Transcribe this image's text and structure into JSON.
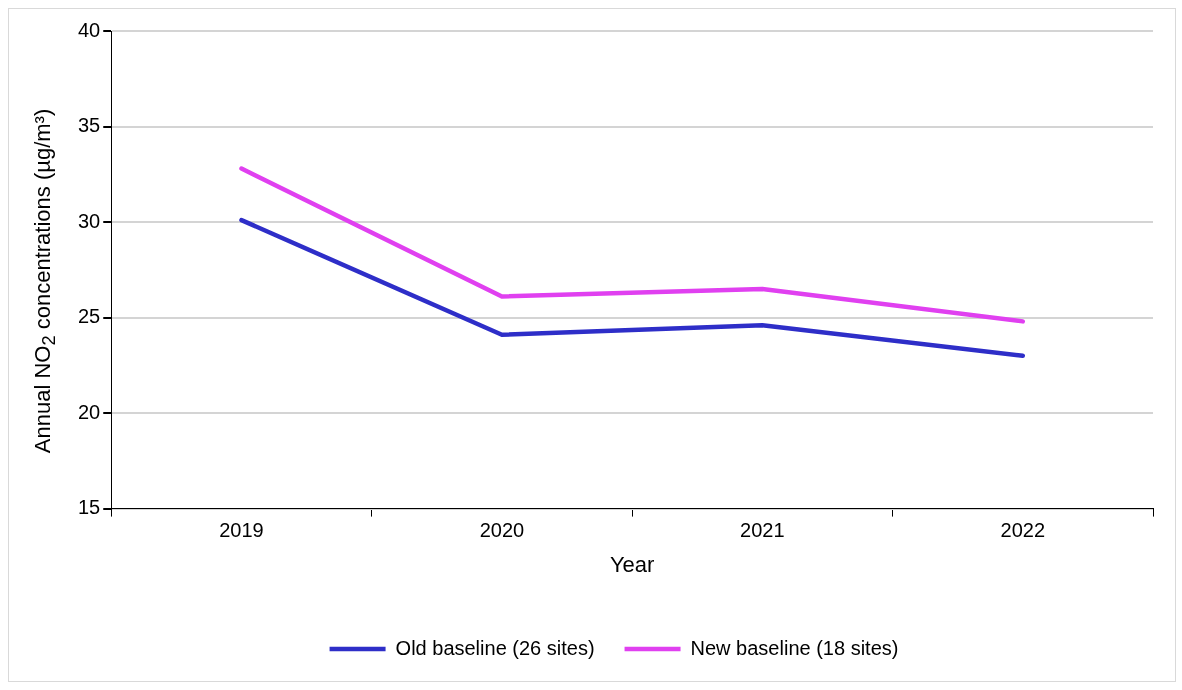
{
  "chart_data": {
    "type": "line",
    "xlabel": "Year",
    "ylabel": "Annual NO$_{2}$ concentrations (µg/m³)",
    "categories": [
      "2019",
      "2020",
      "2021",
      "2022"
    ],
    "series": [
      {
        "name": "Old baseline (26 sites)",
        "color": "#2e2ec8",
        "values": [
          30.1,
          24.1,
          24.6,
          23.0
        ]
      },
      {
        "name": "New baseline (18 sites)",
        "color": "#e040f0",
        "values": [
          32.8,
          26.1,
          26.5,
          24.8
        ]
      }
    ],
    "ylim": [
      15,
      40
    ],
    "yticks": [
      15,
      20,
      25,
      30,
      35,
      40
    ],
    "grid": "y",
    "legend": "bottom",
    "marker": "none",
    "line_style": "solid"
  }
}
